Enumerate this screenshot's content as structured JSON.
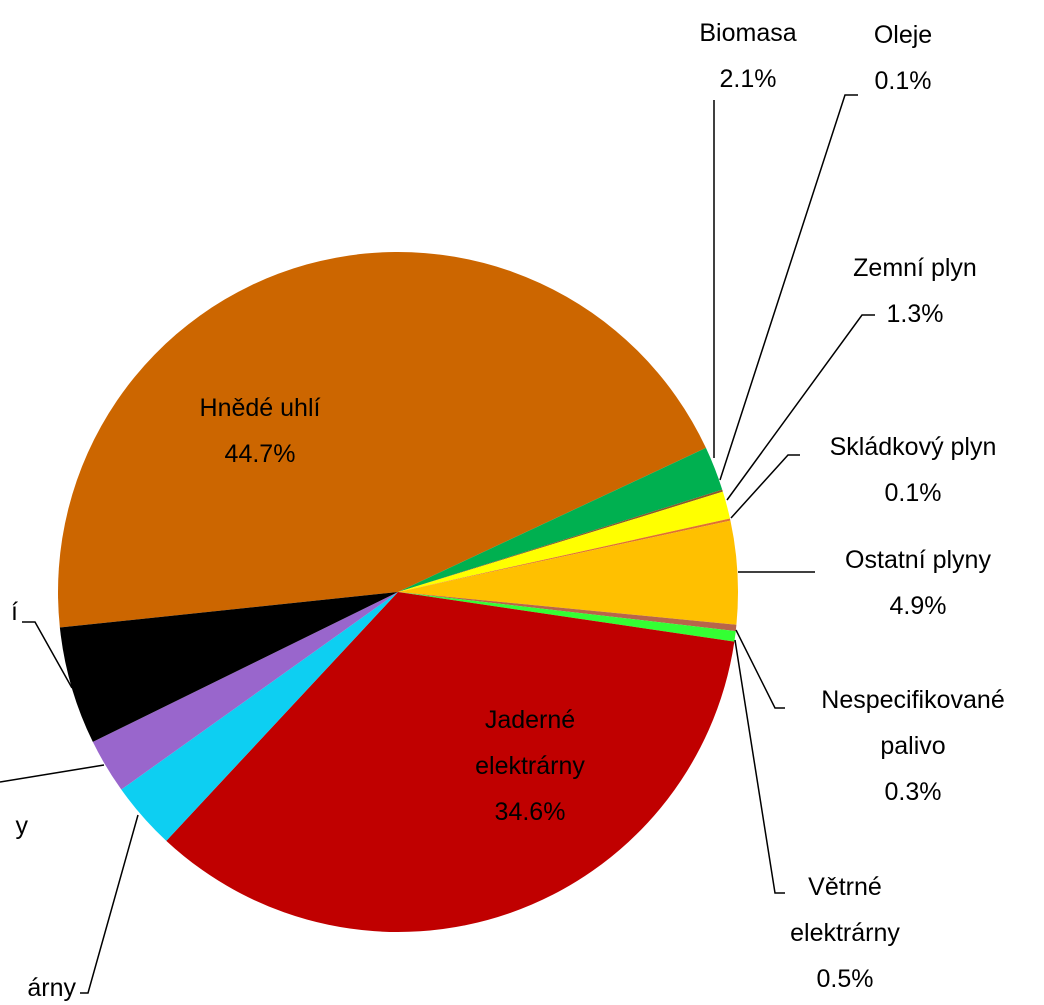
{
  "chart_data": {
    "type": "pie",
    "categories": [
      "Hnědé uhlí",
      "Biomasa",
      "Oleje",
      "Zemní plyn",
      "Skládkový plyn",
      "Ostatní plyny",
      "Nespecifikované palivo",
      "Větrné elektrárny",
      "Jaderné elektrárny",
      "árny",
      "y",
      "í"
    ],
    "values": [
      44.7,
      2.1,
      0.1,
      1.3,
      0.1,
      4.9,
      0.3,
      0.5,
      34.6,
      3.2,
      2.6,
      5.6
    ],
    "value_labels": [
      "44.7%",
      "2.1%",
      "0.1%",
      "1.3%",
      "0.1%",
      "4.9%",
      "0.3%",
      "0.5%",
      "34.6%",
      null,
      null,
      null
    ],
    "colors": [
      "#cc6600",
      "#00b050",
      "#8b5a2b",
      "#ffff00",
      "#e07030",
      "#ffc000",
      "#b8654a",
      "#33ff33",
      "#c00000",
      "#0dcff2",
      "#9966cc",
      "#000000"
    ]
  }
}
